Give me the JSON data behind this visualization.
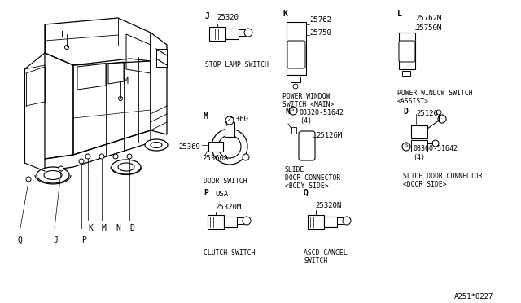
{
  "bg_color": "#ffffff",
  "text_color": "#000000",
  "diagram_code": "A251*0227",
  "figsize": [
    6.4,
    3.72
  ],
  "dpi": 100,
  "sections": {
    "J": {
      "label": "J",
      "part": "25320",
      "desc1": "STOP LAMP SWITCH",
      "desc2": ""
    },
    "K": {
      "label": "K",
      "part1": "25762",
      "part2": "25750",
      "desc1": "POWER WINDOW",
      "desc2": "SWITCH <MAIN>"
    },
    "L": {
      "label": "L",
      "part1": "25762M",
      "part2": "25750M",
      "desc1": "POWER WINDOW SWITCH",
      "desc2": "<ASSIST>"
    },
    "M": {
      "label": "M",
      "part1": "25360",
      "part2": "25369",
      "part3": "25360A",
      "desc1": "DOOR SWITCH",
      "desc2": ""
    },
    "N": {
      "label": "N",
      "part1": "08320-51642",
      "part2": "(4)",
      "part3": "25126M",
      "desc1": "SLIDE",
      "desc2": "DOOR CONNECTOR",
      "desc3": "<BODY SIDE>"
    },
    "D": {
      "label": "D",
      "part1": "25126",
      "part2": "08360-51642",
      "part3": "(4)",
      "desc1": "SLIDE DOOR CONNECTOR",
      "desc2": "<DOOR SIDE>"
    },
    "P": {
      "label": "P",
      "sublabel": "USA",
      "part": "25320M",
      "desc1": "CLUTCH SWITCH",
      "desc2": ""
    },
    "Q": {
      "label": "Q",
      "part": "25320N",
      "desc1": "ASCD CANCEL",
      "desc2": "SWITCH"
    }
  }
}
